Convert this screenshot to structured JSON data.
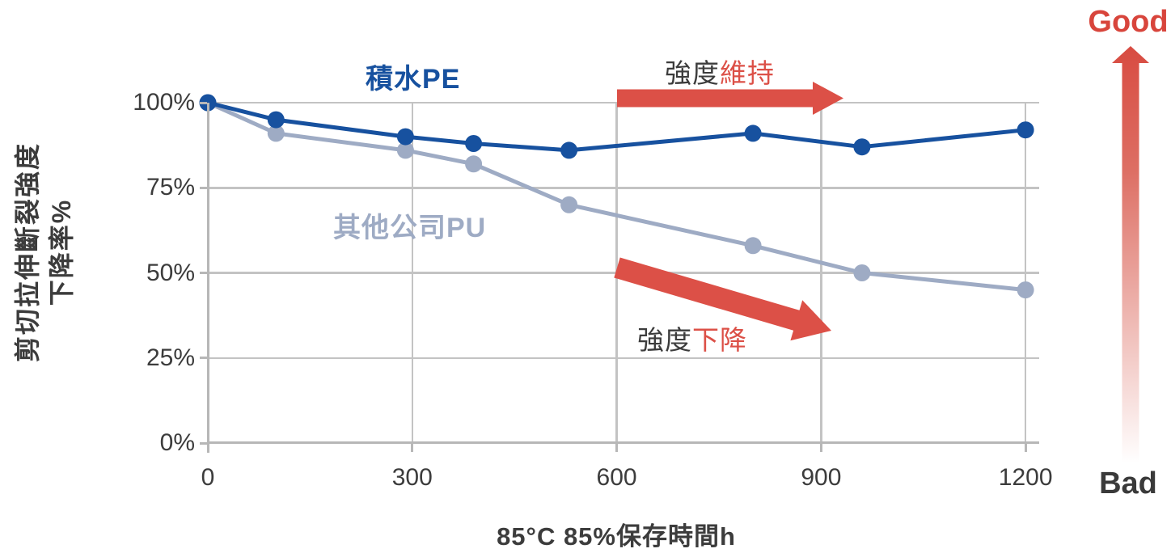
{
  "chart_data": {
    "type": "line",
    "x": [
      0,
      100,
      290,
      390,
      530,
      800,
      960,
      1200
    ],
    "series": [
      {
        "name": "積水PE",
        "color": "#17519F",
        "values": [
          100,
          95,
          90,
          88,
          86,
          91,
          87,
          92
        ]
      },
      {
        "name": "其他公司PU",
        "color": "#9EABC4",
        "values": [
          100,
          91,
          86,
          82,
          70,
          58,
          50,
          45
        ]
      }
    ],
    "xlabel": "85°C 85%保存時間h",
    "ylabel": "剪切拉伸斷裂強度下降率%",
    "ylabel_line1": "剪切拉伸斷裂強度",
    "ylabel_line2": "下降率%",
    "x_ticks": [
      0,
      300,
      600,
      900,
      1200
    ],
    "y_tick_values": [
      0,
      25,
      50,
      75,
      100
    ],
    "y_tick_labels": [
      "0%",
      "25%",
      "50%",
      "75%",
      "100%"
    ],
    "xlim": [
      0,
      1220
    ],
    "ylim": [
      0,
      100
    ],
    "grid": true,
    "legend_position": "inline-labels-on-plot"
  },
  "annotations": {
    "maintain_prefix": "強度",
    "maintain_highlight": "維持",
    "decline_prefix": "強度",
    "decline_highlight": "下降",
    "good_label": "Good",
    "bad_label": "Bad"
  },
  "colors": {
    "series_pe_blue": "#17519F",
    "series_pu_gray": "#9EABC4",
    "arrow_red": "#DC5047",
    "good_red": "#D8453C",
    "text_dark": "#3C3C3C",
    "gridline_gray": "#C3C3C3"
  }
}
